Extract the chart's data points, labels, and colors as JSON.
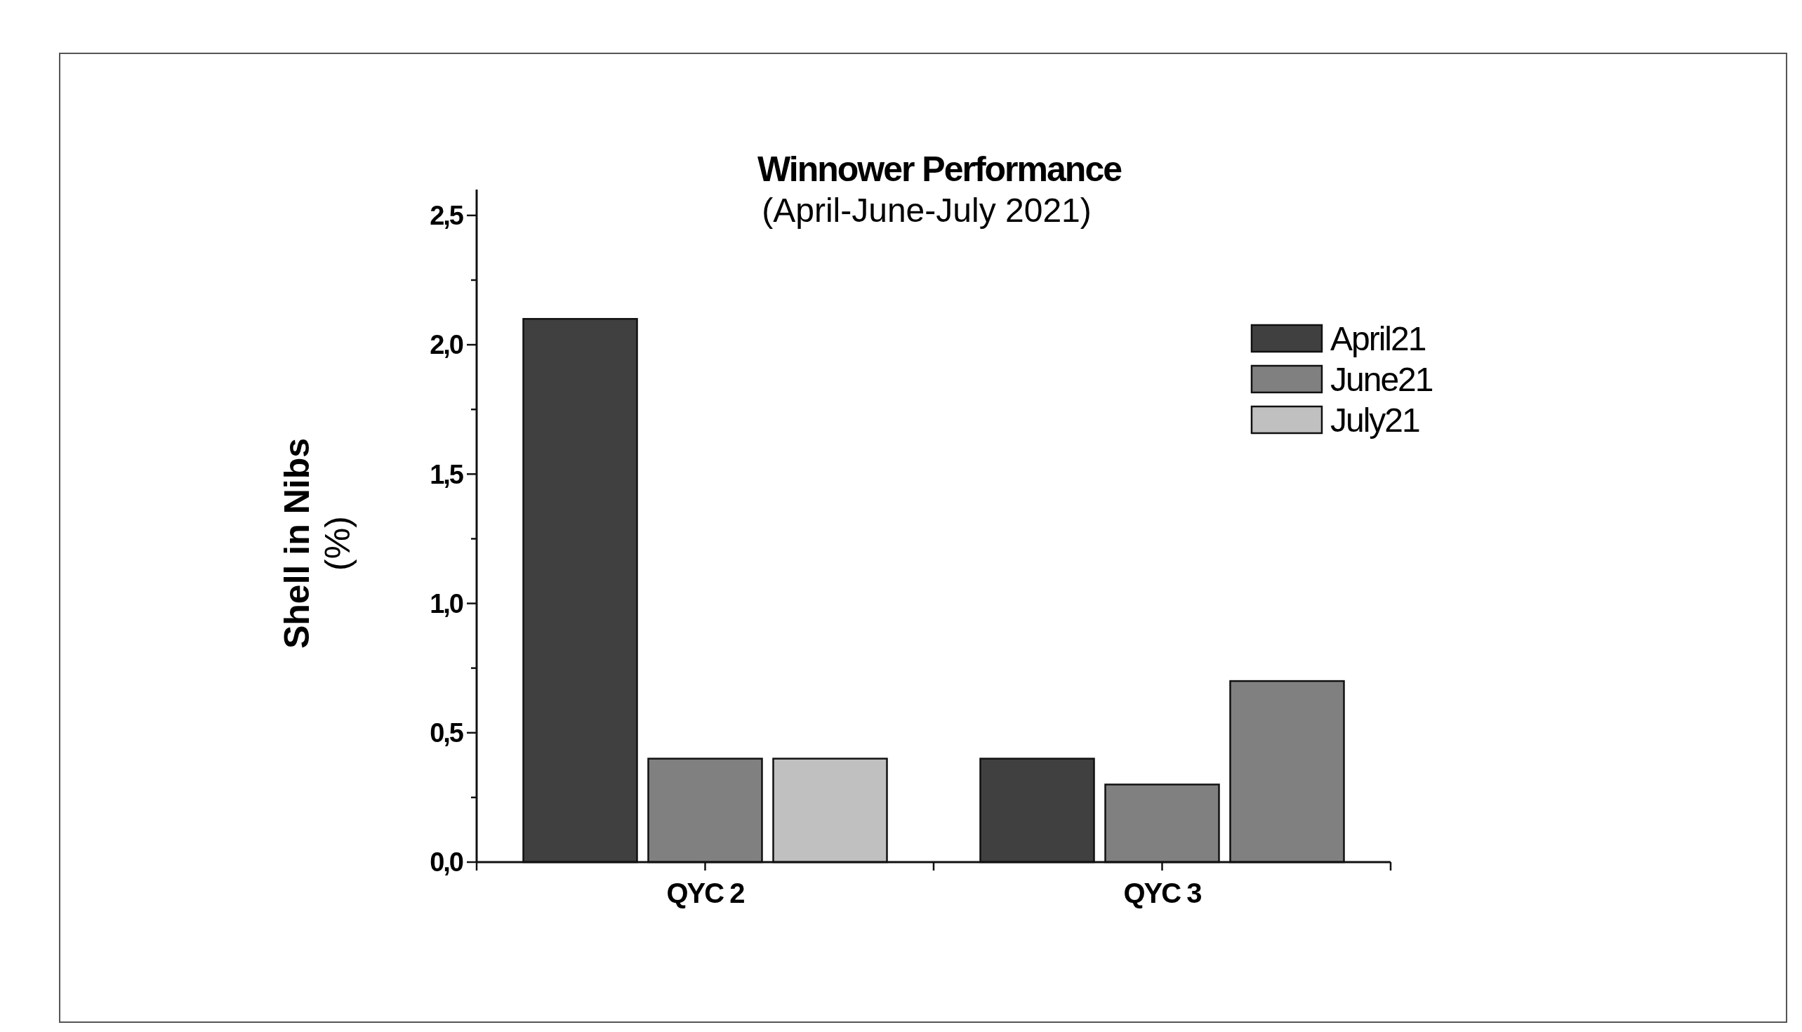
{
  "chart_data": {
    "type": "bar",
    "title": "Winnower Performance",
    "subtitle": "(April-June-July 2021)",
    "ylabel": "Shell in Nibs\n(%)",
    "categories": [
      "QYC 2",
      "QYC 3"
    ],
    "series": [
      {
        "name": "April21",
        "color": "#404040",
        "values": [
          2.1,
          0.4
        ]
      },
      {
        "name": "June21",
        "color": "#808080",
        "values": [
          0.4,
          0.3
        ]
      },
      {
        "name": "July21",
        "color": "#c0c0c0",
        "colors": [
          "#c0c0c0",
          "#808080"
        ],
        "values": [
          0.4,
          0.7
        ]
      }
    ],
    "ylim": [
      0,
      2.6
    ],
    "yticks": [
      {
        "value": 0,
        "label": "0,0"
      },
      {
        "value": 0.25,
        "label": null
      },
      {
        "value": 0.5,
        "label": "0,5"
      },
      {
        "value": 0.75,
        "label": null
      },
      {
        "value": 1,
        "label": "1,0"
      },
      {
        "value": 1.25,
        "label": null
      },
      {
        "value": 1.5,
        "label": "1,5"
      },
      {
        "value": 1.75,
        "label": null
      },
      {
        "value": 2,
        "label": "2,0"
      },
      {
        "value": 2.25,
        "label": null
      },
      {
        "value": 2.5,
        "label": "2,5"
      }
    ],
    "grid": false,
    "legend": "top right"
  }
}
